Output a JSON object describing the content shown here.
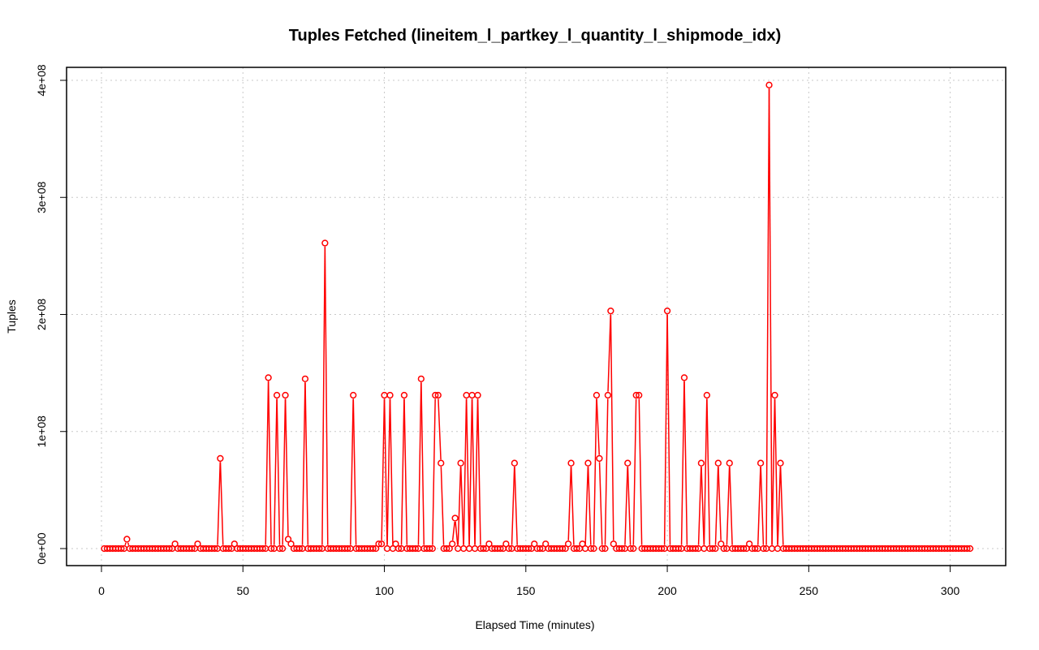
{
  "colors": {
    "series": "#ff0000",
    "grid": "#c8c8c8",
    "axis": "#000000"
  },
  "chart_data": {
    "type": "line",
    "title": "Tuples Fetched (lineitem_l_partkey_l_quantity_l_shipmode_idx)",
    "xlabel": "Elapsed Time (minutes)",
    "ylabel": "Tuples",
    "xlim": [
      0,
      307
    ],
    "ylim": [
      0,
      400000000
    ],
    "x_ticks": [
      0,
      50,
      100,
      150,
      200,
      250,
      300
    ],
    "x_tick_labels": [
      "0",
      "50",
      "100",
      "150",
      "200",
      "250",
      "300"
    ],
    "y_ticks": [
      0,
      100000000,
      200000000,
      300000000,
      400000000
    ],
    "y_tick_labels": [
      "0e+00",
      "1e+08",
      "2e+08",
      "3e+08",
      "4e+08"
    ],
    "grid": true,
    "markers": "open-circle",
    "x_range": [
      1,
      307
    ],
    "baseline": 0,
    "nonzero_points": [
      [
        9,
        8000000
      ],
      [
        26,
        4000000
      ],
      [
        34,
        4000000
      ],
      [
        42,
        77000000
      ],
      [
        47,
        4000000
      ],
      [
        59,
        146000000
      ],
      [
        62,
        131000000
      ],
      [
        65,
        131000000
      ],
      [
        66,
        8000000
      ],
      [
        67,
        4000000
      ],
      [
        72,
        145000000
      ],
      [
        79,
        261000000
      ],
      [
        89,
        131000000
      ],
      [
        98,
        4000000
      ],
      [
        99,
        4000000
      ],
      [
        100,
        131000000
      ],
      [
        102,
        131000000
      ],
      [
        104,
        4000000
      ],
      [
        107,
        131000000
      ],
      [
        113,
        145000000
      ],
      [
        118,
        131000000
      ],
      [
        119,
        131000000
      ],
      [
        120,
        73000000
      ],
      [
        124,
        4000000
      ],
      [
        125,
        26000000
      ],
      [
        127,
        73000000
      ],
      [
        129,
        131000000
      ],
      [
        131,
        131000000
      ],
      [
        133,
        131000000
      ],
      [
        137,
        4000000
      ],
      [
        143,
        4000000
      ],
      [
        146,
        73000000
      ],
      [
        153,
        4000000
      ],
      [
        157,
        4000000
      ],
      [
        165,
        4000000
      ],
      [
        166,
        73000000
      ],
      [
        170,
        4000000
      ],
      [
        172,
        73000000
      ],
      [
        175,
        131000000
      ],
      [
        176,
        77000000
      ],
      [
        179,
        131000000
      ],
      [
        180,
        203000000
      ],
      [
        181,
        4000000
      ],
      [
        186,
        73000000
      ],
      [
        189,
        131000000
      ],
      [
        190,
        131000000
      ],
      [
        200,
        203000000
      ],
      [
        206,
        146000000
      ],
      [
        212,
        73000000
      ],
      [
        214,
        131000000
      ],
      [
        218,
        73000000
      ],
      [
        219,
        4000000
      ],
      [
        222,
        73000000
      ],
      [
        229,
        4000000
      ],
      [
        233,
        73000000
      ],
      [
        236,
        396000000
      ],
      [
        238,
        131000000
      ],
      [
        240,
        73000000
      ]
    ]
  }
}
